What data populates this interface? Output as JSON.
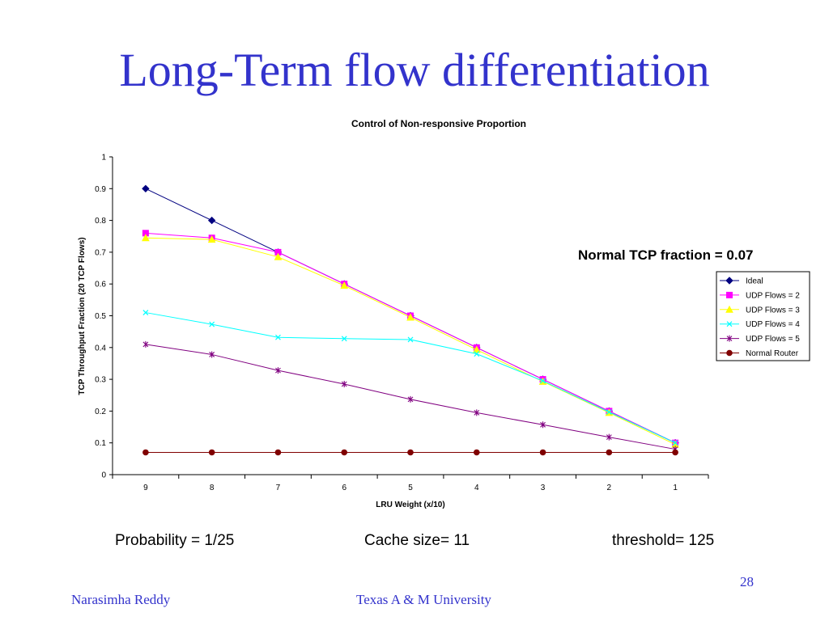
{
  "slide": {
    "title": "Long-Term flow differentiation",
    "tcp_note": "Normal TCP fraction = 0.07",
    "params": [
      "Probability = 1/25",
      "Cache size= 11",
      "threshold= 125"
    ],
    "footer_left": "Narasimha Reddy",
    "footer_center": "Texas A & M University",
    "page_number": "28"
  },
  "chart_data": {
    "type": "line",
    "title": "Control of Non-responsive Proportion",
    "xlabel": "LRU Weight (x/10)",
    "ylabel": "TCP Throughput Fraction (20 TCP Flows)",
    "categories": [
      "9",
      "8",
      "7",
      "6",
      "5",
      "4",
      "3",
      "2",
      "1"
    ],
    "ylim": [
      0,
      1
    ],
    "yticks": [
      "0",
      "0.1",
      "0.2",
      "0.3",
      "0.4",
      "0.5",
      "0.6",
      "0.7",
      "0.8",
      "0.9",
      "1"
    ],
    "grid": false,
    "legend_position": "right",
    "series": [
      {
        "name": "Ideal",
        "color": "#000080",
        "marker": "diamond",
        "values": [
          0.9,
          0.8,
          0.7,
          0.6,
          0.5,
          0.4,
          0.3,
          0.2,
          0.1
        ]
      },
      {
        "name": "UDP Flows = 2",
        "color": "#ff00ff",
        "marker": "square",
        "values": [
          0.76,
          0.745,
          0.7,
          0.6,
          0.5,
          0.4,
          0.3,
          0.2,
          0.1
        ]
      },
      {
        "name": "UDP Flows = 3",
        "color": "#ffff00",
        "marker": "triangle",
        "values": [
          0.745,
          0.74,
          0.685,
          0.595,
          0.495,
          0.393,
          0.293,
          0.195,
          0.095
        ]
      },
      {
        "name": "UDP Flows = 4",
        "color": "#00ffff",
        "marker": "x",
        "values": [
          0.51,
          0.473,
          0.432,
          0.428,
          0.425,
          0.38,
          0.295,
          0.197,
          0.1
        ]
      },
      {
        "name": "UDP Flows = 5",
        "color": "#800080",
        "marker": "asterisk",
        "values": [
          0.41,
          0.378,
          0.328,
          0.285,
          0.237,
          0.195,
          0.157,
          0.118,
          0.08
        ]
      },
      {
        "name": "Normal Router",
        "color": "#800000",
        "marker": "circle",
        "values": [
          0.07,
          0.07,
          0.07,
          0.07,
          0.07,
          0.07,
          0.07,
          0.07,
          0.07
        ]
      }
    ]
  }
}
